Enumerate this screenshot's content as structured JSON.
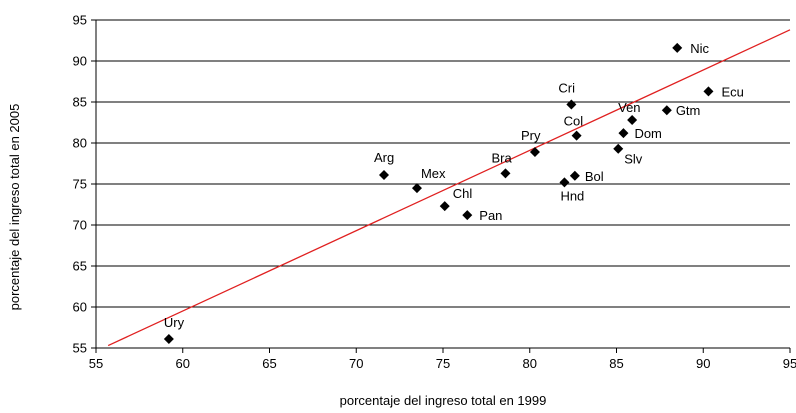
{
  "chart_data": {
    "type": "scatter",
    "xlabel": "porcentaje del ingreso total en 1999",
    "ylabel": "porcentaje del ingreso total en 2005",
    "xlim": [
      55,
      95
    ],
    "ylim": [
      55,
      95
    ],
    "x_ticks": [
      55,
      60,
      65,
      70,
      75,
      80,
      85,
      90,
      95
    ],
    "y_ticks": [
      55,
      60,
      65,
      70,
      75,
      80,
      85,
      90,
      95
    ],
    "grid": "horizontal",
    "marker_color": "#000000",
    "line_color": "#e02020",
    "points": [
      {
        "label": "Ury",
        "x": 59.2,
        "y": 56.1
      },
      {
        "label": "Arg",
        "x": 71.6,
        "y": 76.1
      },
      {
        "label": "Mex",
        "x": 73.5,
        "y": 74.5
      },
      {
        "label": "Chl",
        "x": 75.1,
        "y": 72.3
      },
      {
        "label": "Pan",
        "x": 76.4,
        "y": 71.2
      },
      {
        "label": "Bra",
        "x": 78.6,
        "y": 76.3
      },
      {
        "label": "Pry",
        "x": 80.3,
        "y": 78.9
      },
      {
        "label": "Hnd",
        "x": 82.0,
        "y": 75.2
      },
      {
        "label": "Bol",
        "x": 82.6,
        "y": 76.0
      },
      {
        "label": "Cri",
        "x": 82.4,
        "y": 84.7
      },
      {
        "label": "Col",
        "x": 82.7,
        "y": 80.9
      },
      {
        "label": "Slv",
        "x": 85.1,
        "y": 79.3
      },
      {
        "label": "Dom",
        "x": 85.4,
        "y": 81.2
      },
      {
        "label": "Ven",
        "x": 85.9,
        "y": 82.8
      },
      {
        "label": "Gtm",
        "x": 87.9,
        "y": 84.0
      },
      {
        "label": "Nic",
        "x": 88.5,
        "y": 91.6
      },
      {
        "label": "Ecu",
        "x": 90.3,
        "y": 86.3
      }
    ],
    "trend_line": {
      "x": [
        55.7,
        95.0
      ],
      "y": [
        55.3,
        93.8
      ]
    }
  }
}
